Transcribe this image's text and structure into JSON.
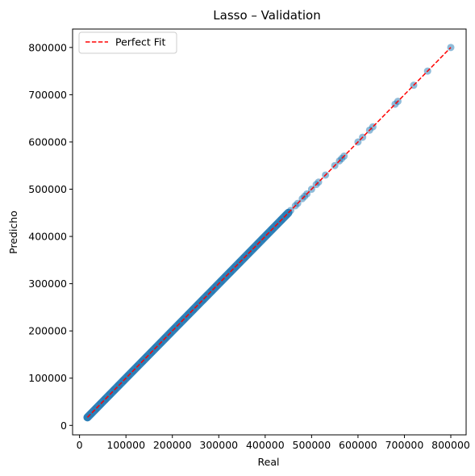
{
  "chart_data": {
    "type": "scatter",
    "title": "Lasso – Validation",
    "xlabel": "Real",
    "ylabel": "Predicho",
    "xlim": [
      -15000,
      833000
    ],
    "ylim": [
      -20000,
      839000
    ],
    "xticks": [
      0,
      100000,
      200000,
      300000,
      400000,
      500000,
      600000,
      700000,
      800000
    ],
    "yticks": [
      0,
      100000,
      200000,
      300000,
      400000,
      500000,
      600000,
      700000,
      800000
    ],
    "grid": false,
    "legend": {
      "placement": "top-left",
      "entries": [
        "Perfect Fit"
      ]
    },
    "colors": {
      "points": "#1f77b4",
      "line": "#ff0000"
    },
    "points": {
      "dense_range": [
        17000,
        450000
      ],
      "x": [
        17000,
        25000,
        35000,
        45000,
        55000,
        65000,
        75000,
        85000,
        95000,
        105000,
        115000,
        125000,
        135000,
        145000,
        155000,
        165000,
        175000,
        185000,
        195000,
        205000,
        215000,
        225000,
        235000,
        245000,
        255000,
        265000,
        275000,
        285000,
        295000,
        305000,
        315000,
        325000,
        335000,
        345000,
        355000,
        365000,
        375000,
        385000,
        395000,
        405000,
        415000,
        425000,
        435000,
        445000,
        455000,
        465000,
        470000,
        480000,
        485000,
        490000,
        500000,
        510000,
        515000,
        530000,
        550000,
        560000,
        565000,
        570000,
        600000,
        610000,
        625000,
        632000,
        680000,
        686000,
        720000,
        750000,
        800000
      ],
      "y": [
        17000,
        25000,
        35000,
        45000,
        55000,
        65000,
        75000,
        85000,
        95000,
        105000,
        115000,
        125000,
        135000,
        145000,
        155000,
        165000,
        175000,
        185000,
        195000,
        205000,
        215000,
        225000,
        235000,
        245000,
        255000,
        265000,
        275000,
        285000,
        295000,
        305000,
        315000,
        325000,
        335000,
        345000,
        355000,
        365000,
        375000,
        385000,
        395000,
        405000,
        415000,
        425000,
        435000,
        445000,
        455000,
        465000,
        470000,
        480000,
        485000,
        490000,
        500000,
        510000,
        515000,
        530000,
        550000,
        560000,
        565000,
        570000,
        600000,
        610000,
        625000,
        632000,
        680000,
        686000,
        720000,
        750000,
        800000
      ]
    },
    "reference_line": {
      "name": "Perfect Fit",
      "x": [
        17000,
        800000
      ],
      "y": [
        17000,
        800000
      ],
      "style": "dashed"
    }
  }
}
